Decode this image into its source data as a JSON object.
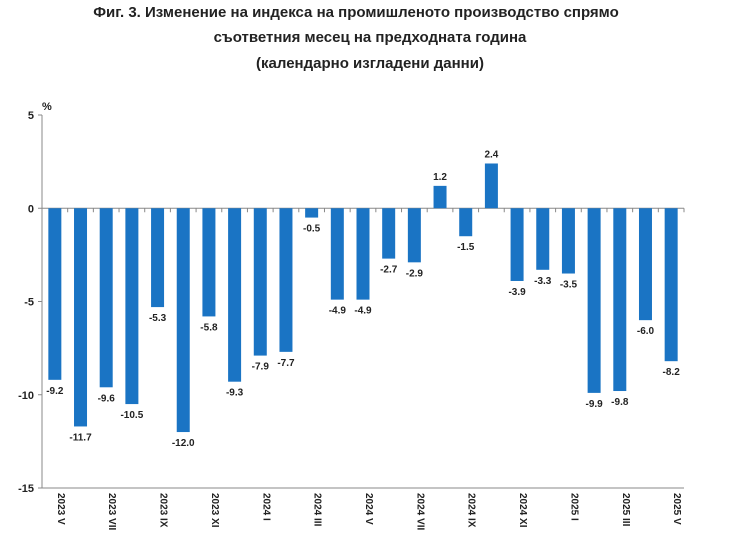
{
  "chart_data": {
    "type": "bar",
    "title_lines": [
      "Фиг. 3. Изменение на индекса на промишленото производство спрямо",
      "съответния месец на предходната година",
      "(календарно изгладени данни)"
    ],
    "ylabel": "%",
    "ylim": [
      -15,
      5
    ],
    "yticks": [
      "5",
      "0",
      "-5",
      "-10",
      "-15"
    ],
    "ytick_values": [
      5,
      0,
      -5,
      -10,
      -15
    ],
    "categories": [
      "2023 V",
      "",
      "2023 VII",
      "",
      "2023 IX",
      "",
      "2023 XI",
      "",
      "2024 I",
      "",
      "2024 III",
      "",
      "2024 V",
      "",
      "2024 VII",
      "",
      "2024 IX",
      "",
      "2024 XI",
      "",
      "2025 I",
      "",
      "2025 III",
      "",
      "2025 V"
    ],
    "values": [
      -9.2,
      -11.7,
      -9.6,
      -10.5,
      -5.3,
      -12.0,
      -5.8,
      -9.3,
      -7.9,
      -7.7,
      -0.5,
      -4.9,
      -4.9,
      -2.7,
      -2.9,
      1.2,
      -1.5,
      2.4,
      -3.9,
      -3.3,
      -3.5,
      -9.9,
      -9.8,
      -6.0,
      -8.2
    ],
    "value_labels": [
      "-9.2",
      "-11.7",
      "-9.6",
      "-10.5",
      "-5.3",
      "-12.0",
      "-5.8",
      "-9.3",
      "-7.9",
      "-7.7",
      "-0.5",
      "-4.9",
      "-4.9",
      "-2.7",
      "-2.9",
      "1.2",
      "-1.5",
      "2.4",
      "-3.9",
      "-3.3",
      "-3.5",
      "-9.9",
      "-9.8",
      "-6.0",
      "-8.2"
    ],
    "bar_color": "#1a74c4",
    "grid": false,
    "legend": "none"
  }
}
